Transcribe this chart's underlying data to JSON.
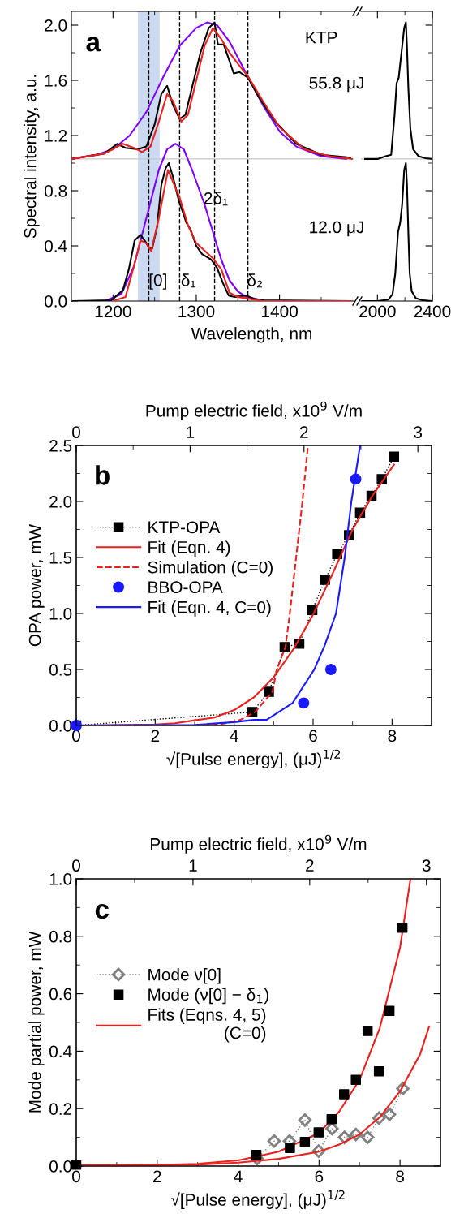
{
  "chart_data": [
    {
      "type": "line",
      "title": "a",
      "ylabel": "Spectral intensity, a.u.",
      "xlabel": "Wavelength, nm",
      "xlim": [
        1150,
        1490
      ],
      "xticks": [
        1200,
        1300,
        1400,
        {
          "value": 1250,
          "label": null
        },
        {
          "value": 1350,
          "label": null
        },
        {
          "value": 1450,
          "label": null
        }
      ],
      "ylim": [
        0,
        2.1
      ],
      "yticks": [
        {
          "value": 0,
          "label": "0.0"
        },
        {
          "value": 0.4,
          "label": "0.4"
        },
        {
          "value": 0.8,
          "label": "0.8"
        },
        {
          "value": 1.2,
          "label": "1.2"
        },
        {
          "value": 1.6,
          "label": "1.6"
        },
        {
          "value": 2.0,
          "label": "2.0"
        },
        {
          "value": 0.2,
          "label": null
        },
        {
          "value": 0.6,
          "label": null
        },
        {
          "value": 1.0,
          "label": null
        },
        {
          "value": 1.4,
          "label": null
        },
        {
          "value": 1.8,
          "label": null
        }
      ],
      "series": [
        {
          "color": "#7f00ff",
          "x": [
            1150,
            1180,
            1200,
            1220,
            1240,
            1260,
            1280,
            1300,
            1313,
            1325,
            1340,
            1360,
            1380,
            1400,
            1420,
            1450,
            1480
          ],
          "values": [
            1.03,
            1.06,
            1.1,
            1.2,
            1.37,
            1.62,
            1.85,
            1.98,
            2.02,
            2.0,
            1.88,
            1.65,
            1.42,
            1.23,
            1.12,
            1.05,
            1.03
          ]
        },
        {
          "color": "#000000",
          "x": [
            1150,
            1190,
            1205,
            1215,
            1230,
            1240,
            1250,
            1258,
            1265,
            1272,
            1280,
            1287,
            1295,
            1305,
            1315,
            1322,
            1326,
            1333,
            1345,
            1352,
            1362,
            1375,
            1395,
            1420,
            1450,
            1485
          ],
          "values": [
            1.03,
            1.07,
            1.14,
            1.11,
            1.1,
            1.12,
            1.28,
            1.5,
            1.56,
            1.42,
            1.32,
            1.35,
            1.55,
            1.8,
            1.98,
            2.02,
            1.86,
            1.86,
            1.65,
            1.66,
            1.62,
            1.48,
            1.3,
            1.14,
            1.06,
            1.04
          ]
        },
        {
          "color": "#e8211e",
          "x": [
            1150,
            1190,
            1212,
            1225,
            1235,
            1245,
            1255,
            1265,
            1272,
            1282,
            1290,
            1300,
            1310,
            1320,
            1330,
            1340,
            1350,
            1362,
            1380,
            1400,
            1430,
            1460,
            1487
          ],
          "values": [
            1.03,
            1.07,
            1.14,
            1.11,
            1.08,
            1.12,
            1.3,
            1.5,
            1.45,
            1.3,
            1.35,
            1.6,
            1.85,
            1.98,
            1.9,
            1.8,
            1.72,
            1.63,
            1.45,
            1.26,
            1.1,
            1.05,
            1.03
          ]
        },
        {
          "color": "#7f00ff",
          "x": [
            1150,
            1190,
            1210,
            1225,
            1240,
            1255,
            1265,
            1275,
            1285,
            1295,
            1310,
            1320,
            1330,
            1340,
            1350,
            1360,
            1380
          ],
          "values": [
            0,
            0,
            0.05,
            0.25,
            0.6,
            0.95,
            1.1,
            1.14,
            1.1,
            0.95,
            0.7,
            0.5,
            0.3,
            0.15,
            0.07,
            0.03,
            0.005
          ]
        },
        {
          "color": "#000000",
          "x": [
            1152,
            1198,
            1212,
            1219,
            1226,
            1233,
            1239,
            1244,
            1247,
            1253,
            1258,
            1263,
            1267,
            1272,
            1279,
            1288,
            1293,
            1300,
            1307,
            1318,
            1325,
            1332,
            1339,
            1346,
            1360,
            1370,
            1381,
            1485
          ],
          "values": [
            0,
            0.005,
            0.08,
            0.23,
            0.44,
            0.48,
            0.43,
            0.38,
            0.38,
            0.54,
            0.84,
            0.96,
            1.0,
            0.9,
            0.73,
            0.57,
            0.52,
            0.4,
            0.34,
            0.3,
            0.24,
            0.13,
            0.04,
            0.03,
            0.04,
            0.015,
            0.005,
            0
          ]
        },
        {
          "color": "#e8211e",
          "x": [
            1200,
            1215,
            1225,
            1233,
            1240,
            1246,
            1255,
            1266,
            1280,
            1290,
            1300,
            1320,
            1330,
            1340,
            1350,
            1360,
            1380,
            1487
          ],
          "values": [
            0,
            0.03,
            0.25,
            0.44,
            0.42,
            0.36,
            0.6,
            0.95,
            0.75,
            0.55,
            0.42,
            0.31,
            0.23,
            0.06,
            0.03,
            0.02,
            0,
            0
          ]
        }
      ],
      "ref_lines": [
        {
          "axis": "y",
          "value": 1.03,
          "color": "#c8c8c8",
          "line_style": "solid"
        },
        {
          "axis": "x",
          "value": 1243,
          "color": "#000000",
          "line_style": "dashed"
        },
        {
          "axis": "x",
          "value": 1280,
          "color": "#000000",
          "line_style": "dashed"
        },
        {
          "axis": "x",
          "value": 1322,
          "color": "#000000",
          "line_style": "dashed"
        },
        {
          "axis": "x",
          "value": 1362,
          "color": "#000000",
          "line_style": "dashed"
        }
      ],
      "bands": [
        {
          "axis": "x",
          "from": 1230,
          "to": 1256,
          "color": "#a9c1e6"
        }
      ],
      "annotations": [
        "KTP",
        "55.8 μJ",
        "12.0 μJ",
        "[0]",
        "δ₁",
        "2δ₁",
        "δ₂"
      ]
    },
    {
      "type": "line",
      "tick_labels": "x",
      "xlim": [
        1880,
        2400
      ],
      "xticks": [
        2000,
        2400,
        {
          "value": 2200,
          "label": null
        }
      ],
      "ylim": [
        0,
        2.1
      ],
      "yticks": [
        0,
        0.4,
        0.8,
        1.2,
        1.6,
        2.0,
        {
          "value": 0.2,
          "label": null
        },
        {
          "value": 0.6,
          "label": null
        },
        {
          "value": 1.0,
          "label": null
        },
        {
          "value": 1.4,
          "label": null
        },
        {
          "value": 1.8,
          "label": null
        }
      ],
      "series": [
        {
          "color": "#000000",
          "x": [
            1910,
            2000,
            2060,
            2100,
            2125,
            2140,
            2155,
            2175,
            2195,
            2207,
            2215,
            2225,
            2240,
            2260,
            2300,
            2350,
            2400
          ],
          "values": [
            1.03,
            1.03,
            1.05,
            1.06,
            1.35,
            1.58,
            1.62,
            1.8,
            1.98,
            2.02,
            1.85,
            1.55,
            1.25,
            1.1,
            1.05,
            1.035,
            1.03
          ]
        },
        {
          "color": "#000000",
          "x": [
            1890,
            2000,
            2080,
            2110,
            2130,
            2150,
            2166,
            2180,
            2195,
            2207,
            2215,
            2225,
            2235,
            2250,
            2280,
            2330,
            2400
          ],
          "values": [
            0,
            0,
            0.01,
            0.05,
            0.2,
            0.5,
            0.57,
            0.7,
            0.95,
            1.0,
            0.85,
            0.5,
            0.2,
            0.07,
            0.02,
            0.005,
            0
          ]
        }
      ],
      "ref_lines": [
        {
          "axis": "y",
          "value": 1.03,
          "color": "#c8c8c8",
          "line_style": "solid"
        }
      ]
    },
    {
      "type": "line",
      "title": "b",
      "xlabel": "√[Pulse energy], (μJ)$^{1/2}$",
      "ylabel": "OPA power, mW",
      "x2label": "Pump electric field, x10$^{9}$ V/m",
      "xlim": [
        0,
        9
      ],
      "xticks": [
        0,
        2,
        4,
        6,
        8,
        {
          "value": 1,
          "label": null
        },
        {
          "value": 3,
          "label": null
        },
        {
          "value": 5,
          "label": null
        },
        {
          "value": 7,
          "label": null
        }
      ],
      "x2lim": [
        0,
        3.12
      ],
      "x2ticks": [
        0,
        1,
        2,
        3,
        {
          "value": 0.5,
          "label": null
        },
        {
          "value": 1.5,
          "label": null
        },
        {
          "value": 2.5,
          "label": null
        }
      ],
      "ylim": [
        0,
        2.5
      ],
      "yticks": [
        {
          "value": 0,
          "label": "0.0"
        },
        {
          "value": 0.5,
          "label": "0.5"
        },
        {
          "value": 1.0,
          "label": "1.0"
        },
        {
          "value": 1.5,
          "label": "1.5"
        },
        {
          "value": 2.0,
          "label": "2.0"
        },
        {
          "value": 2.5,
          "label": "2.5"
        },
        {
          "value": 0.25,
          "label": null
        },
        {
          "value": 0.75,
          "label": null
        },
        {
          "value": 1.25,
          "label": null
        },
        {
          "value": 1.75,
          "label": null
        },
        {
          "value": 2.25,
          "label": null
        }
      ],
      "legend": "left",
      "series": [
        {
          "name": "KTP-OPA",
          "type": "line",
          "marker": "square",
          "line_style": "dotted",
          "color": "#000000",
          "x": [
            0,
            4.46,
            4.88,
            5.28,
            5.65,
            5.98,
            6.3,
            6.61,
            6.91,
            7.19,
            7.48,
            7.74,
            8.05
          ],
          "values": [
            0,
            0.12,
            0.3,
            0.7,
            0.73,
            1.03,
            1.3,
            1.53,
            1.7,
            1.9,
            2.05,
            2.2,
            2.4
          ]
        },
        {
          "name": "Fit (Eqn. 4)",
          "type": "line",
          "line_style": "solid",
          "color": "#e8211e",
          "x": [
            0,
            2,
            2.5,
            3,
            3.5,
            4,
            4.5,
            5,
            5.5,
            6,
            6.5,
            7,
            7.5,
            8.05
          ],
          "values": [
            0,
            0.008,
            0.02,
            0.046,
            0.07,
            0.137,
            0.25,
            0.43,
            0.68,
            0.99,
            1.36,
            1.75,
            2.05,
            2.33
          ]
        },
        {
          "name": "Simulation (C=0)",
          "type": "line",
          "line_style": "dashed",
          "color": "#e8211e",
          "x": [
            3.2,
            3.65,
            4.16,
            4.53,
            4.97,
            5.08,
            5.3,
            5.41,
            5.57,
            5.73,
            5.87
          ],
          "values": [
            0,
            0.01,
            0.05,
            0.12,
            0.3,
            0.5,
            0.7,
            1.0,
            1.5,
            2.0,
            2.5
          ]
        },
        {
          "name": "BBO-OPA",
          "type": "scatter",
          "marker": "circle",
          "color": "#1a1aff",
          "x": [
            0,
            5.76,
            6.45,
            7.08
          ],
          "values": [
            0,
            0.2,
            0.5,
            2.2
          ]
        },
        {
          "name": "Fit (Eqn. 4, C=0)",
          "type": "line",
          "line_style": "solid",
          "color": "#1a1aff",
          "x": [
            0,
            3,
            4,
            4.5,
            4.82,
            5.48,
            6.03,
            6.3,
            6.58,
            6.8,
            6.97,
            7.19
          ],
          "values": [
            0,
            0.005,
            0.03,
            0.05,
            0.05,
            0.2,
            0.5,
            0.72,
            1.0,
            1.5,
            2.0,
            2.5
          ]
        }
      ]
    },
    {
      "type": "scatter",
      "title": "c",
      "xlabel": "√[Pulse energy], (μJ)$^{1/2}$",
      "ylabel": "Mode partial power, mW",
      "x2label": "Pump electric field, x10$^{9}$ V/m",
      "xlim": [
        0,
        9
      ],
      "xticks": [
        0,
        2,
        4,
        6,
        8,
        {
          "value": 1,
          "label": null
        },
        {
          "value": 3,
          "label": null
        },
        {
          "value": 5,
          "label": null
        },
        {
          "value": 7,
          "label": null
        }
      ],
      "x2lim": [
        0,
        3.12
      ],
      "x2ticks": [
        0,
        1,
        2,
        3,
        {
          "value": 0.5,
          "label": null
        },
        {
          "value": 1.5,
          "label": null
        },
        {
          "value": 2.5,
          "label": null
        }
      ],
      "ylim": [
        0,
        1.0
      ],
      "yticks": [
        {
          "value": 0,
          "label": "0.0"
        },
        {
          "value": 0.2,
          "label": "0.2"
        },
        {
          "value": 0.4,
          "label": "0.4"
        },
        {
          "value": 0.6,
          "label": "0.6"
        },
        {
          "value": 0.8,
          "label": "0.8"
        },
        {
          "value": 1.0,
          "label": "1.0"
        },
        {
          "value": 0.1,
          "label": null
        },
        {
          "value": 0.3,
          "label": null
        },
        {
          "value": 0.5,
          "label": null
        },
        {
          "value": 0.7,
          "label": null
        },
        {
          "value": 0.9,
          "label": null
        }
      ],
      "legend": "left",
      "series": [
        {
          "name": "Mode ν[0]",
          "type": "line",
          "marker": "diamond",
          "line_style": "dotted",
          "color": "#808080",
          "x": [
            4.47,
            4.89,
            5.27,
            5.65,
            5.99,
            6.32,
            6.63,
            6.91,
            7.2,
            7.48,
            7.74,
            8.07
          ],
          "values": [
            0.026,
            0.087,
            0.087,
            0.16,
            0.052,
            0.13,
            0.1,
            0.11,
            0.1,
            0.167,
            0.18,
            0.27
          ]
        },
        {
          "name": "Mode (ν[0] − δ$_{1}$)",
          "type": "scatter",
          "marker": "square",
          "color": "#000000",
          "x": [
            0,
            4.45,
            5.28,
            5.65,
            5.99,
            6.31,
            6.62,
            6.91,
            7.2,
            7.48,
            7.74,
            8.06
          ],
          "values": [
            0.005,
            0.039,
            0.063,
            0.084,
            0.117,
            0.163,
            0.25,
            0.3,
            0.47,
            0.33,
            0.54,
            0.83
          ]
        },
        {
          "name": "Fits (Eqns. 4, 5)\n(C=0)",
          "type": "line",
          "line_style": "solid",
          "color": "#e8211e",
          "x": [
            0,
            2,
            3,
            4,
            5,
            6,
            6.5,
            7,
            7.5,
            8,
            8.26
          ],
          "values": [
            0.002,
            0.004,
            0.008,
            0.02,
            0.05,
            0.115,
            0.19,
            0.3,
            0.48,
            0.76,
            1.0
          ]
        },
        {
          "type": "line",
          "line_style": "solid",
          "color": "#e8211e",
          "x": [
            0,
            3,
            4,
            5,
            6,
            6.5,
            7,
            7.5,
            8,
            8.5,
            8.72
          ],
          "values": [
            0.002,
            0.005,
            0.012,
            0.025,
            0.05,
            0.075,
            0.11,
            0.17,
            0.26,
            0.39,
            0.486
          ]
        }
      ]
    }
  ]
}
